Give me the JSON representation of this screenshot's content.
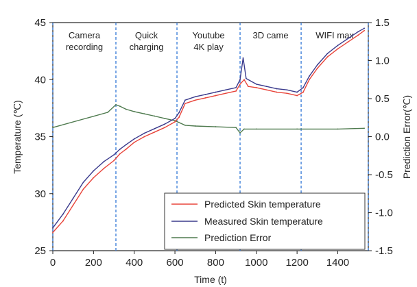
{
  "chart_data": {
    "type": "line",
    "title": "",
    "xlabel": "Time (t)",
    "ylabel": "Temperature (℃)",
    "y2label": "Prediction Error(℃)",
    "xlim": [
      0,
      1550
    ],
    "ylim": [
      25,
      45
    ],
    "y2lim": [
      -1.5,
      1.5
    ],
    "x_ticks": [
      0,
      200,
      400,
      600,
      800,
      1000,
      1200,
      1400
    ],
    "y_ticks": [
      25,
      30,
      35,
      40,
      45
    ],
    "y2_ticks": [
      -1.5,
      -1.0,
      -0.5,
      0.0,
      0.5,
      1.0,
      1.5
    ],
    "y2_tick_labels": [
      "-1.5",
      "-1.0",
      "-0.5",
      "0.0",
      "0.5",
      "1.0",
      "1.5"
    ],
    "grid": false,
    "legend_position": "bottom-right",
    "phase_boundaries": [
      310,
      610,
      920,
      1220,
      1550
    ],
    "phases": [
      {
        "label_lines": [
          "Camera",
          "recording"
        ],
        "x": 155
      },
      {
        "label_lines": [
          "Quick",
          "charging"
        ],
        "x": 460
      },
      {
        "label_lines": [
          "Youtube",
          "4K play"
        ],
        "x": 765
      },
      {
        "label_lines": [
          "3D came"
        ],
        "x": 1070
      },
      {
        "label_lines": [
          "WIFI max"
        ],
        "x": 1385
      }
    ],
    "series": [
      {
        "name": "Predicted Skin temperature",
        "axis": "left",
        "color": "#e8443a",
        "x": [
          0,
          50,
          100,
          150,
          200,
          250,
          300,
          330,
          360,
          400,
          450,
          500,
          550,
          600,
          620,
          650,
          700,
          750,
          800,
          850,
          900,
          920,
          940,
          960,
          1000,
          1050,
          1100,
          1150,
          1200,
          1230,
          1260,
          1300,
          1350,
          1400,
          1450,
          1500,
          1530
        ],
        "values": [
          26.6,
          27.6,
          29.0,
          30.4,
          31.4,
          32.2,
          32.9,
          33.5,
          33.9,
          34.5,
          35.0,
          35.4,
          35.8,
          36.3,
          36.7,
          37.9,
          38.2,
          38.4,
          38.6,
          38.8,
          39.0,
          39.6,
          40.0,
          39.4,
          39.3,
          39.1,
          38.9,
          38.8,
          38.6,
          38.9,
          40.0,
          41.0,
          42.0,
          42.7,
          43.3,
          43.9,
          44.3
        ]
      },
      {
        "name": "Measured Skin temperature",
        "axis": "left",
        "color": "#3a3a8c",
        "x": [
          0,
          50,
          100,
          150,
          200,
          250,
          300,
          330,
          360,
          400,
          450,
          500,
          550,
          600,
          620,
          650,
          700,
          750,
          800,
          850,
          900,
          920,
          935,
          950,
          1000,
          1050,
          1100,
          1150,
          1200,
          1230,
          1260,
          1300,
          1350,
          1400,
          1450,
          1500,
          1530
        ],
        "values": [
          27.0,
          28.2,
          29.6,
          31.0,
          32.0,
          32.8,
          33.4,
          33.9,
          34.3,
          34.8,
          35.3,
          35.7,
          36.1,
          36.6,
          37.1,
          38.2,
          38.5,
          38.7,
          38.9,
          39.1,
          39.3,
          40.0,
          41.9,
          40.1,
          39.6,
          39.4,
          39.2,
          39.1,
          38.9,
          39.3,
          40.3,
          41.3,
          42.3,
          43.0,
          43.6,
          44.2,
          44.5
        ]
      },
      {
        "name": "Prediction Error",
        "axis": "right",
        "color": "#4e7a4e",
        "x": [
          0,
          270,
          310,
          330,
          360,
          400,
          450,
          500,
          550,
          600,
          650,
          700,
          800,
          900,
          920,
          940,
          1000,
          1200,
          1400,
          1530
        ],
        "values": [
          0.12,
          0.32,
          0.42,
          0.4,
          0.36,
          0.33,
          0.3,
          0.27,
          0.24,
          0.21,
          0.15,
          0.14,
          0.13,
          0.12,
          0.05,
          0.1,
          0.1,
          0.1,
          0.1,
          0.11
        ]
      }
    ]
  }
}
